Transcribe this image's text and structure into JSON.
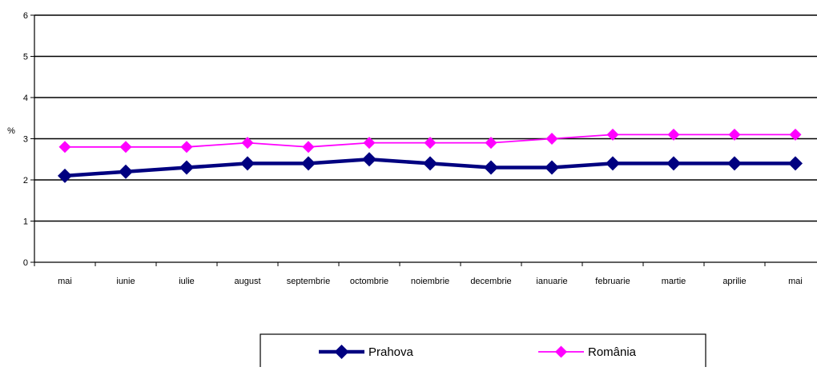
{
  "chart_data": {
    "type": "line",
    "title": "",
    "xlabel": "",
    "ylabel": "%",
    "ylim": [
      0,
      6
    ],
    "yticks": [
      0,
      1,
      2,
      3,
      4,
      5,
      6
    ],
    "grid": true,
    "legend_position": "bottom",
    "categories": [
      "mai",
      "iunie",
      "iulie",
      "august",
      "septembrie",
      "octombrie",
      "noiembrie",
      "decembrie",
      "ianuarie",
      "februarie",
      "martie",
      "aprilie",
      "mai"
    ],
    "series": [
      {
        "name": "Prahova",
        "color": "#000080",
        "marker": "diamond",
        "values": [
          2.1,
          2.2,
          2.3,
          2.4,
          2.4,
          2.5,
          2.4,
          2.3,
          2.3,
          2.4,
          2.4,
          2.4,
          2.4
        ]
      },
      {
        "name": "România",
        "color": "#FF00FF",
        "marker": "diamond",
        "values": [
          2.8,
          2.8,
          2.8,
          2.9,
          2.8,
          2.9,
          2.9,
          2.9,
          3.0,
          3.1,
          3.1,
          3.1,
          3.1
        ]
      }
    ]
  }
}
